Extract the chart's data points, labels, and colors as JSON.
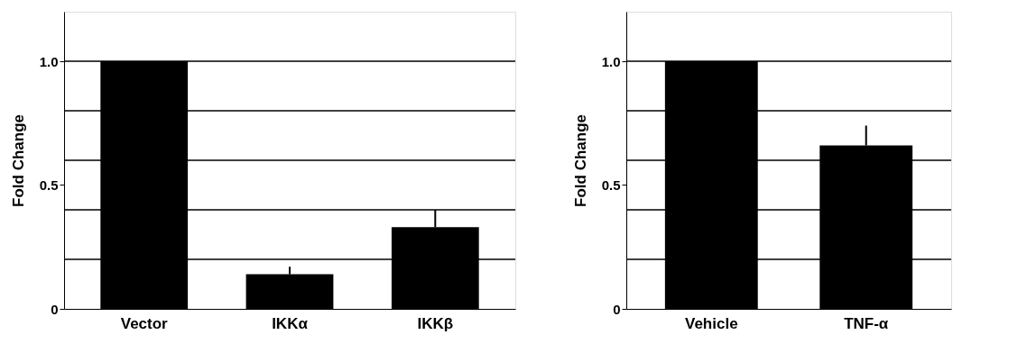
{
  "chart_data": [
    {
      "type": "bar",
      "ylabel": "Fold Change",
      "categories": [
        "Vector",
        "IKKα",
        "IKKβ"
      ],
      "values": [
        1.0,
        0.14,
        0.33
      ],
      "color": "#000000",
      "errors": [
        null,
        [
          0.14,
          0.17
        ],
        [
          0.33,
          0.4
        ]
      ],
      "ylim": [
        0,
        1.2
      ],
      "yticks": [
        0,
        0.5,
        {
          "value": 1.0,
          "label": "1.0"
        }
      ],
      "grid": false,
      "ref_lines": [
        {
          "axis": "y",
          "value": 0.2,
          "color": "#000000"
        },
        {
          "axis": "y",
          "value": 0.4,
          "color": "#000000"
        },
        {
          "axis": "y",
          "value": 0.6,
          "color": "#000000"
        },
        {
          "axis": "y",
          "value": 0.8,
          "color": "#000000"
        },
        {
          "axis": "y",
          "value": 1.0,
          "color": "#000000"
        }
      ]
    },
    {
      "type": "bar",
      "ylabel": "Fold Change",
      "categories": [
        "Vehicle",
        "TNF-α"
      ],
      "values": [
        1.0,
        0.66
      ],
      "color": "#000000",
      "errors": [
        null,
        [
          0.66,
          0.74
        ]
      ],
      "ylim": [
        0,
        1.2
      ],
      "yticks": [
        0,
        0.5,
        {
          "value": 1.0,
          "label": "1.0"
        }
      ],
      "grid": false,
      "ref_lines": [
        {
          "axis": "y",
          "value": 0.2,
          "color": "#000000"
        },
        {
          "axis": "y",
          "value": 0.4,
          "color": "#000000"
        },
        {
          "axis": "y",
          "value": 0.6,
          "color": "#000000"
        },
        {
          "axis": "y",
          "value": 0.8,
          "color": "#000000"
        },
        {
          "axis": "y",
          "value": 1.0,
          "color": "#000000"
        }
      ]
    }
  ]
}
